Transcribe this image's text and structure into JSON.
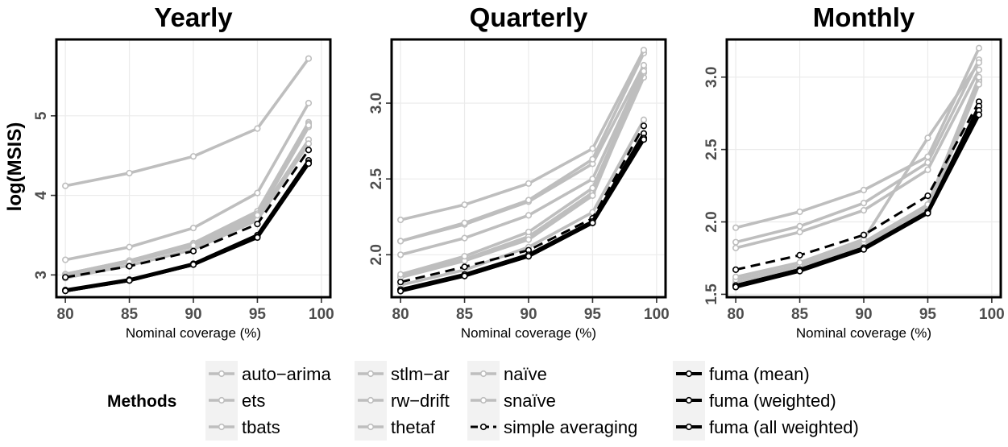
{
  "chart_data": {
    "type": "line",
    "ylabel": "log(MSIS)",
    "x": [
      80,
      85,
      90,
      95,
      99
    ],
    "legend": {
      "title": "Methods",
      "placement": "bottom",
      "entries": [
        {
          "name": "auto−arima",
          "color": "#bebebe",
          "style": "solid"
        },
        {
          "name": "ets",
          "color": "#bebebe",
          "style": "solid"
        },
        {
          "name": "tbats",
          "color": "#bebebe",
          "style": "solid"
        },
        {
          "name": "stlm−ar",
          "color": "#bebebe",
          "style": "solid"
        },
        {
          "name": "rw−drift",
          "color": "#bebebe",
          "style": "solid"
        },
        {
          "name": "thetaf",
          "color": "#bebebe",
          "style": "solid"
        },
        {
          "name": "naïve",
          "color": "#bebebe",
          "style": "solid"
        },
        {
          "name": "snaïve",
          "color": "#bebebe",
          "style": "solid"
        },
        {
          "name": "simple averaging",
          "color": "#000000",
          "style": "dashed"
        },
        {
          "name": "fuma (mean)",
          "color": "#000000",
          "style": "solid"
        },
        {
          "name": "fuma (weighted)",
          "color": "#000000",
          "style": "solid"
        },
        {
          "name": "fuma (all weighted)",
          "color": "#000000",
          "style": "solid"
        }
      ]
    },
    "panels": [
      {
        "title": "Yearly",
        "xlabel": "Nominal coverage (%)",
        "xlim": [
          79.3,
          100.7
        ],
        "ylim": [
          2.72,
          5.96
        ],
        "xticks": [
          80,
          85,
          90,
          95,
          100
        ],
        "yticks": [
          3,
          4,
          5
        ],
        "series": [
          {
            "name": "auto−arima",
            "values": [
              3.0,
              3.17,
              3.37,
              3.74,
              4.86
            ]
          },
          {
            "name": "ets",
            "values": [
              2.99,
              3.16,
              3.36,
              3.72,
              4.7
            ]
          },
          {
            "name": "tbats",
            "values": [
              3.01,
              3.18,
              3.4,
              3.8,
              4.92
            ]
          },
          {
            "name": "stlm−ar",
            "values": [
              3.19,
              3.35,
              3.59,
              4.03,
              5.16
            ]
          },
          {
            "name": "rw−drift",
            "values": [
              3.01,
              3.18,
              3.39,
              3.77,
              4.9
            ]
          },
          {
            "name": "thetaf",
            "values": [
              2.96,
              3.12,
              3.32,
              3.69,
              4.65
            ]
          },
          {
            "name": "naïve",
            "values": [
              4.12,
              4.28,
              4.49,
              4.84,
              5.72
            ]
          },
          {
            "name": "snaïve",
            "values": [
              2.99,
              3.16,
              3.37,
              3.75,
              4.88
            ]
          },
          {
            "name": "simple averaging",
            "values": [
              2.97,
              3.11,
              3.3,
              3.64,
              4.57
            ]
          },
          {
            "name": "fuma (mean)",
            "values": [
              2.81,
              2.94,
              3.14,
              3.5,
              4.44
            ]
          },
          {
            "name": "fuma (weighted)",
            "values": [
              2.8,
              2.93,
              3.13,
              3.48,
              4.41
            ]
          },
          {
            "name": "fuma (all weighted)",
            "values": [
              2.8,
              2.93,
              3.13,
              3.47,
              4.4
            ]
          }
        ]
      },
      {
        "title": "Quarterly",
        "xlabel": "Nominal coverage (%)",
        "xlim": [
          79.3,
          100.7
        ],
        "ylim": [
          1.72,
          3.42
        ],
        "xticks": [
          80,
          85,
          90,
          95,
          100
        ],
        "yticks": [
          2.0,
          2.5,
          3.0
        ],
        "series": [
          {
            "name": "auto−arima",
            "values": [
              1.86,
              1.97,
              2.12,
              2.41,
              3.17
            ]
          },
          {
            "name": "ets",
            "values": [
              1.85,
              1.96,
              2.1,
              2.39,
              3.2
            ]
          },
          {
            "name": "tbats",
            "values": [
              2.0,
              2.11,
              2.26,
              2.5,
              3.23
            ]
          },
          {
            "name": "stlm−ar",
            "values": [
              2.09,
              2.2,
              2.35,
              2.6,
              3.25
            ]
          },
          {
            "name": "rw−drift",
            "values": [
              2.09,
              2.21,
              2.36,
              2.63,
              3.33
            ]
          },
          {
            "name": "thetaf",
            "values": [
              1.87,
              1.99,
              2.15,
              2.44,
              3.21
            ]
          },
          {
            "name": "naïve",
            "values": [
              2.23,
              2.33,
              2.47,
              2.7,
              3.35
            ]
          },
          {
            "name": "snaïve",
            "values": [
              1.8,
              1.9,
              2.05,
              2.28,
              2.89
            ]
          },
          {
            "name": "simple averaging",
            "values": [
              1.82,
              1.92,
              2.03,
              2.24,
              2.85
            ]
          },
          {
            "name": "fuma (mean)",
            "values": [
              1.77,
              1.87,
              2.0,
              2.22,
              2.8
            ]
          },
          {
            "name": "fuma (weighted)",
            "values": [
              1.77,
              1.86,
              1.99,
              2.21,
              2.77
            ]
          },
          {
            "name": "fuma (all weighted)",
            "values": [
              1.76,
              1.86,
              1.99,
              2.21,
              2.76
            ]
          }
        ]
      },
      {
        "title": "Monthly",
        "xlabel": "Nominal coverage (%)",
        "xlim": [
          79.3,
          100.7
        ],
        "ylim": [
          1.48,
          3.26
        ],
        "xticks": [
          80,
          85,
          90,
          95,
          100
        ],
        "yticks": [
          1.5,
          2.0,
          2.5,
          3.0
        ],
        "series": [
          {
            "name": "auto−arima",
            "values": [
              1.58,
              1.68,
              1.84,
              2.1,
              2.98
            ]
          },
          {
            "name": "ets",
            "values": [
              1.57,
              1.67,
              1.83,
              2.08,
              2.97
            ]
          },
          {
            "name": "tbats",
            "values": [
              1.6,
              1.7,
              1.86,
              2.12,
              3.0
            ]
          },
          {
            "name": "stlm−ar",
            "values": [
              1.86,
              1.97,
              2.13,
              2.41,
              3.12
            ]
          },
          {
            "name": "rw−drift",
            "values": [
              1.82,
              1.93,
              2.08,
              2.36,
              3.05
            ]
          },
          {
            "name": "thetaf",
            "values": [
              1.55,
              1.66,
              1.82,
              2.07,
              2.95
            ]
          },
          {
            "name": "naïve",
            "values": [
              1.96,
              2.07,
              2.22,
              2.45,
              3.2
            ]
          },
          {
            "name": "snaïve",
            "values": [
              1.62,
              1.72,
              1.88,
              2.58,
              3.1
            ]
          },
          {
            "name": "simple averaging",
            "values": [
              1.67,
              1.77,
              1.91,
              2.18,
              2.83
            ]
          },
          {
            "name": "fuma (mean)",
            "values": [
              1.56,
              1.67,
              1.82,
              2.07,
              2.8
            ]
          },
          {
            "name": "fuma (weighted)",
            "values": [
              1.56,
              1.67,
              1.82,
              2.07,
              2.77
            ]
          },
          {
            "name": "fuma (all weighted)",
            "values": [
              1.55,
              1.66,
              1.81,
              2.06,
              2.74
            ]
          }
        ]
      }
    ]
  }
}
